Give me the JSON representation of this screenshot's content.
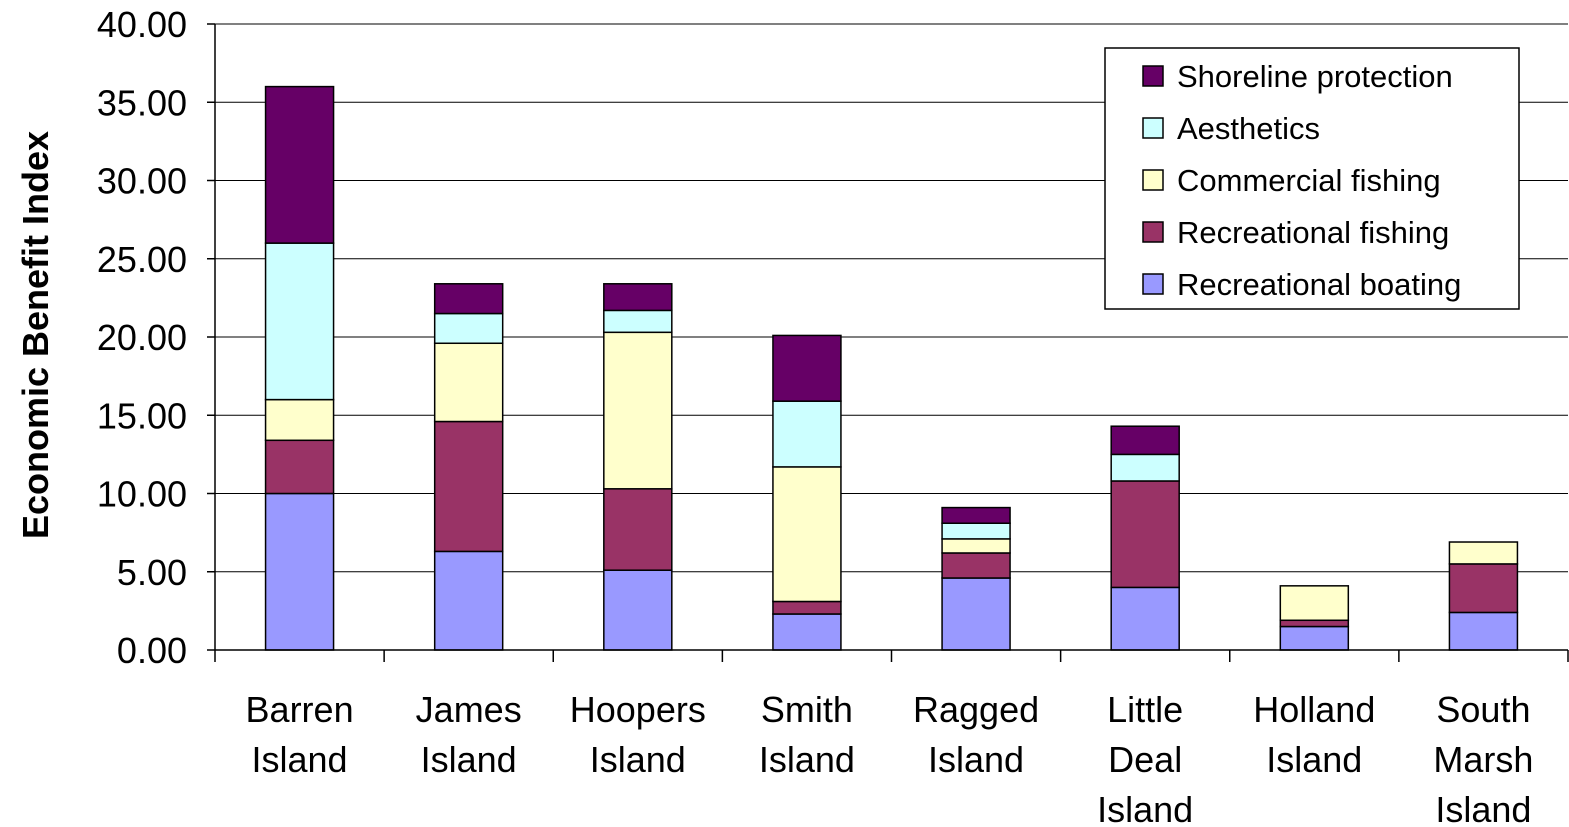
{
  "chart_data": {
    "type": "bar",
    "stacked": true,
    "title": "",
    "xlabel": "",
    "ylabel": "Economic Benefit Index",
    "ylim": [
      0,
      40
    ],
    "yticks": [
      "0.00",
      "5.00",
      "10.00",
      "15.00",
      "20.00",
      "25.00",
      "30.00",
      "35.00",
      "40.00"
    ],
    "grid": "horizontal",
    "legend_position": "top-right",
    "categories": [
      [
        "Barren",
        "Island"
      ],
      [
        "James",
        "Island"
      ],
      [
        "Hoopers",
        "Island"
      ],
      [
        "Smith",
        "Island"
      ],
      [
        "Ragged",
        "Island"
      ],
      [
        "Little",
        "Deal",
        "Island"
      ],
      [
        "Holland",
        "Island"
      ],
      [
        "South",
        "Marsh",
        "Island"
      ]
    ],
    "series": [
      {
        "name": "Recreational boating",
        "color": "#9999ff",
        "values": [
          10.0,
          6.3,
          5.1,
          2.3,
          4.6,
          4.0,
          1.5,
          2.4
        ]
      },
      {
        "name": "Recreational fishing",
        "color": "#993366",
        "values": [
          3.4,
          8.3,
          5.2,
          0.8,
          1.6,
          6.8,
          0.4,
          3.1
        ]
      },
      {
        "name": "Commercial fishing",
        "color": "#ffffcc",
        "values": [
          2.6,
          5.0,
          10.0,
          8.6,
          0.9,
          0.0,
          2.2,
          1.4
        ]
      },
      {
        "name": "Aesthetics",
        "color": "#ccffff",
        "values": [
          10.0,
          1.9,
          1.4,
          4.2,
          1.0,
          1.7,
          0.0,
          0.0
        ]
      },
      {
        "name": "Shoreline protection",
        "color": "#660066",
        "values": [
          10.0,
          1.9,
          1.7,
          4.2,
          1.0,
          1.8,
          0.0,
          0.0
        ]
      }
    ]
  }
}
